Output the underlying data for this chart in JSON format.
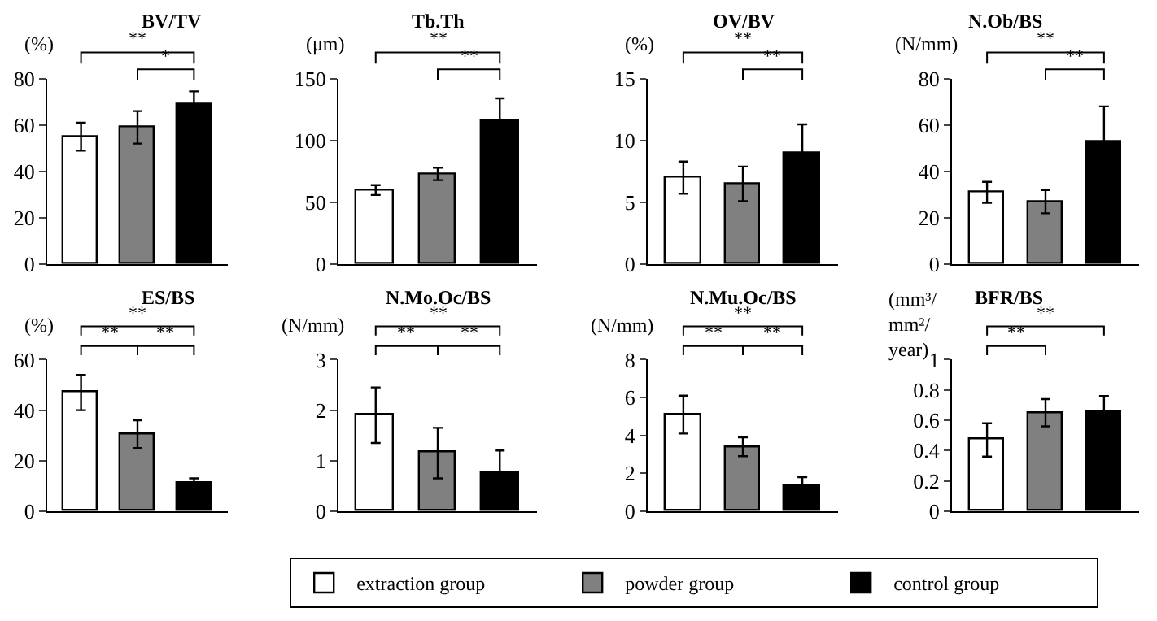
{
  "chart_data": [
    {
      "type": "bar",
      "title": "BV/TV",
      "ylabel": "(%)",
      "categories": [
        null,
        null,
        null
      ],
      "ylim": [
        0,
        80
      ],
      "yticks": [
        0,
        20,
        40,
        60,
        80
      ],
      "grid": false,
      "legend": "bottom",
      "annotations": [
        "**",
        "*"
      ],
      "series": [
        {
          "name": "extraction group",
          "color": "#ffffff",
          "values": [
            55,
            null,
            null
          ],
          "errors": [
            6,
            null,
            null
          ]
        },
        {
          "name": "powder group",
          "color": "#808080",
          "values": [
            null,
            59,
            null
          ],
          "errors": [
            null,
            7,
            null
          ]
        },
        {
          "name": "control group",
          "color": "#000000",
          "values": [
            null,
            null,
            69
          ],
          "errors": [
            null,
            null,
            5.5
          ]
        }
      ]
    },
    {
      "type": "bar",
      "title": "Tb.Th",
      "ylabel": "(μm)",
      "categories": [
        null,
        null,
        null
      ],
      "ylim": [
        0,
        150
      ],
      "yticks": [
        0,
        50,
        100,
        150
      ],
      "grid": false,
      "annotations": [
        "**",
        "**"
      ],
      "series": [
        {
          "color": "#ffffff",
          "values": [
            60,
            null,
            null
          ],
          "errors": [
            4,
            null,
            null
          ]
        },
        {
          "color": "#808080",
          "values": [
            null,
            73,
            null
          ],
          "errors": [
            null,
            5,
            null
          ]
        },
        {
          "color": "#000000",
          "values": [
            null,
            null,
            116
          ],
          "errors": [
            null,
            null,
            18
          ]
        }
      ]
    },
    {
      "type": "bar",
      "title": "OV/BV",
      "ylabel": "(%)",
      "categories": [
        null,
        null,
        null
      ],
      "ylim": [
        0,
        15
      ],
      "yticks": [
        0,
        5,
        10,
        15
      ],
      "grid": false,
      "annotations": [
        "**",
        "**"
      ],
      "series": [
        {
          "color": "#ffffff",
          "values": [
            7.0,
            null,
            null
          ],
          "errors": [
            1.3,
            null,
            null
          ]
        },
        {
          "color": "#808080",
          "values": [
            null,
            6.5,
            null
          ],
          "errors": [
            null,
            1.4,
            null
          ]
        },
        {
          "color": "#000000",
          "values": [
            null,
            null,
            8.9
          ],
          "errors": [
            null,
            null,
            2.4
          ]
        }
      ]
    },
    {
      "type": "bar",
      "title": "N.Ob/BS",
      "ylabel": "(N/mm)",
      "categories": [
        null,
        null,
        null
      ],
      "ylim": [
        0,
        80
      ],
      "yticks": [
        0,
        20,
        40,
        60,
        80
      ],
      "grid": false,
      "annotations": [
        "**",
        "**"
      ],
      "series": [
        {
          "color": "#ffffff",
          "values": [
            31,
            null,
            null
          ],
          "errors": [
            4.5,
            null,
            null
          ]
        },
        {
          "color": "#808080",
          "values": [
            null,
            27,
            null
          ],
          "errors": [
            null,
            5,
            null
          ]
        },
        {
          "color": "#000000",
          "values": [
            null,
            null,
            53
          ],
          "errors": [
            null,
            null,
            15
          ]
        }
      ]
    },
    {
      "type": "bar",
      "title": "ES/BS",
      "ylabel": "(%)",
      "categories": [
        null,
        null,
        null
      ],
      "ylim": [
        0,
        60
      ],
      "yticks": [
        0,
        20,
        40,
        60
      ],
      "grid": false,
      "annotations": [
        "**",
        "**",
        "**"
      ],
      "series": [
        {
          "color": "#ffffff",
          "values": [
            47,
            null,
            null
          ],
          "errors": [
            7,
            null,
            null
          ]
        },
        {
          "color": "#808080",
          "values": [
            null,
            30.5,
            null
          ],
          "errors": [
            null,
            5.5,
            null
          ]
        },
        {
          "color": "#000000",
          "values": [
            null,
            null,
            11
          ],
          "errors": [
            null,
            null,
            2
          ]
        }
      ]
    },
    {
      "type": "bar",
      "title": "N.Mo.Oc/BS",
      "ylabel": "(N/mm)",
      "categories": [
        null,
        null,
        null
      ],
      "ylim": [
        0,
        3
      ],
      "yticks": [
        0,
        1,
        2,
        3
      ],
      "grid": false,
      "annotations": [
        "**",
        "**",
        "**"
      ],
      "series": [
        {
          "color": "#ffffff",
          "values": [
            1.9,
            null,
            null
          ],
          "errors": [
            0.55,
            null,
            null
          ]
        },
        {
          "color": "#808080",
          "values": [
            null,
            1.15,
            null
          ],
          "errors": [
            null,
            0.5,
            null
          ]
        },
        {
          "color": "#000000",
          "values": [
            null,
            null,
            0.75
          ],
          "errors": [
            null,
            null,
            0.45
          ]
        }
      ]
    },
    {
      "type": "bar",
      "title": "N.Mu.Oc/BS",
      "ylabel": "(N/mm)",
      "categories": [
        null,
        null,
        null
      ],
      "ylim": [
        0,
        8
      ],
      "yticks": [
        0,
        2,
        4,
        6,
        8
      ],
      "grid": false,
      "annotations": [
        "**",
        "**",
        "**"
      ],
      "series": [
        {
          "color": "#ffffff",
          "values": [
            5.1,
            null,
            null
          ],
          "errors": [
            1.0,
            null,
            null
          ]
        },
        {
          "color": "#808080",
          "values": [
            null,
            3.4,
            null
          ],
          "errors": [
            null,
            0.5,
            null
          ]
        },
        {
          "color": "#000000",
          "values": [
            null,
            null,
            1.3
          ],
          "errors": [
            null,
            null,
            0.5
          ]
        }
      ]
    },
    {
      "type": "bar",
      "title": "BFR/BS",
      "ylabel": "(mm³/\nmm²/\nyear)",
      "categories": [
        null,
        null,
        null
      ],
      "ylim": [
        0,
        1
      ],
      "yticks": [
        0,
        0.2,
        0.4,
        0.6,
        0.8,
        1
      ],
      "grid": false,
      "annotations": [
        "**",
        "**"
      ],
      "series": [
        {
          "color": "#ffffff",
          "values": [
            0.47,
            null,
            null
          ],
          "errors": [
            0.11,
            null,
            null
          ]
        },
        {
          "color": "#808080",
          "values": [
            null,
            0.65,
            null
          ],
          "errors": [
            null,
            0.09,
            null
          ]
        },
        {
          "color": "#000000",
          "values": [
            null,
            null,
            0.66
          ],
          "errors": [
            null,
            null,
            0.1
          ]
        }
      ]
    }
  ]
}
